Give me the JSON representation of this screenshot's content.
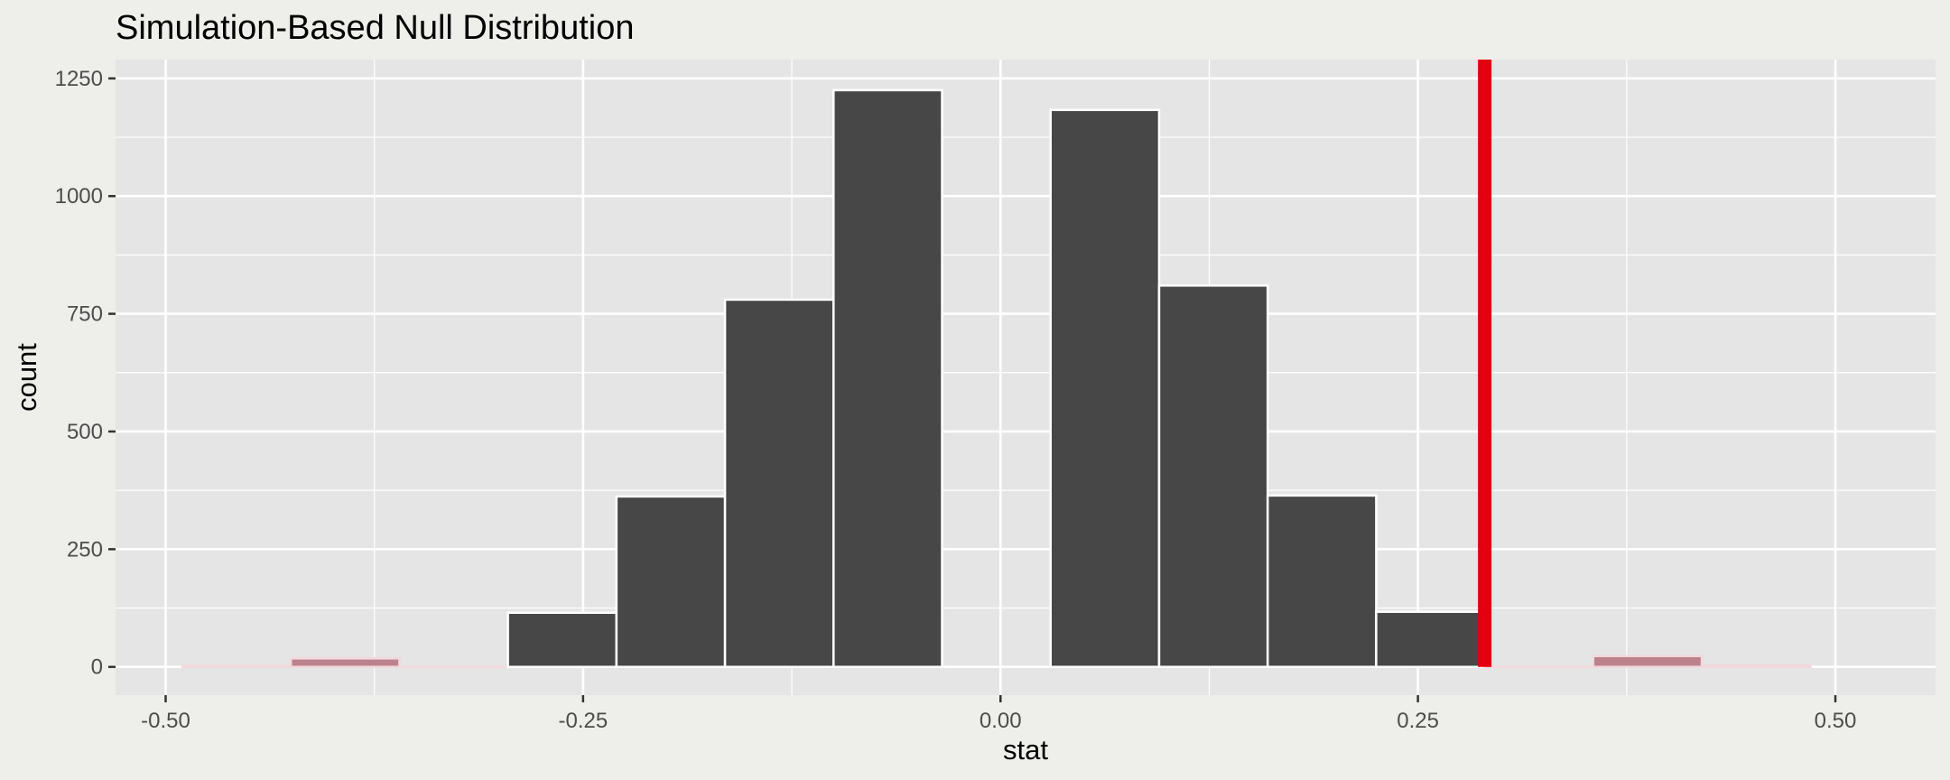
{
  "chart_data": {
    "type": "bar",
    "title": "Simulation-Based Null Distribution",
    "xlabel": "stat",
    "ylabel": "count",
    "xlim": [
      -0.53,
      0.56
    ],
    "ylim": [
      -60,
      1290
    ],
    "x_ticks": [
      -0.5,
      -0.25,
      0.0,
      0.25,
      0.5
    ],
    "x_tick_labels": [
      "-0.50",
      "-0.25",
      "0.00",
      "0.25",
      "0.50"
    ],
    "y_ticks": [
      0,
      250,
      500,
      750,
      1000,
      1250
    ],
    "y_tick_labels": [
      "0",
      "250",
      "500",
      "750",
      "1000",
      "1250"
    ],
    "bins": [
      {
        "x0": -0.49,
        "x1": -0.425,
        "count": 2,
        "shaded": true
      },
      {
        "x0": -0.425,
        "x1": -0.36,
        "count": 18,
        "shaded": true
      },
      {
        "x0": -0.36,
        "x1": -0.295,
        "count": 0,
        "shaded": true
      },
      {
        "x0": -0.295,
        "x1": -0.23,
        "count": 115,
        "shaded": false
      },
      {
        "x0": -0.23,
        "x1": -0.165,
        "count": 362,
        "shaded": false
      },
      {
        "x0": -0.165,
        "x1": -0.1,
        "count": 780,
        "shaded": false
      },
      {
        "x0": -0.1,
        "x1": -0.035,
        "count": 1225,
        "shaded": false
      },
      {
        "x0": -0.035,
        "x1": 0.03,
        "count": 0,
        "shaded": false
      },
      {
        "x0": 0.03,
        "x1": 0.095,
        "count": 1183,
        "shaded": false
      },
      {
        "x0": 0.095,
        "x1": 0.16,
        "count": 810,
        "shaded": false
      },
      {
        "x0": 0.16,
        "x1": 0.225,
        "count": 364,
        "shaded": false
      },
      {
        "x0": 0.225,
        "x1": 0.29,
        "count": 117,
        "shaded": false
      },
      {
        "x0": 0.29,
        "x1": 0.355,
        "count": 0,
        "shaded": true
      },
      {
        "x0": 0.355,
        "x1": 0.42,
        "count": 23,
        "shaded": true
      },
      {
        "x0": 0.42,
        "x1": 0.485,
        "count": 3,
        "shaded": true
      }
    ],
    "observed_stat": 0.29,
    "colors": {
      "bar_fill": "#474747",
      "shaded_fill": "#BC828B",
      "observed_line": "#E3000F",
      "panel": "#E5E5E5",
      "grid": "#FFFFFF"
    },
    "grid": true,
    "legend": "none"
  }
}
